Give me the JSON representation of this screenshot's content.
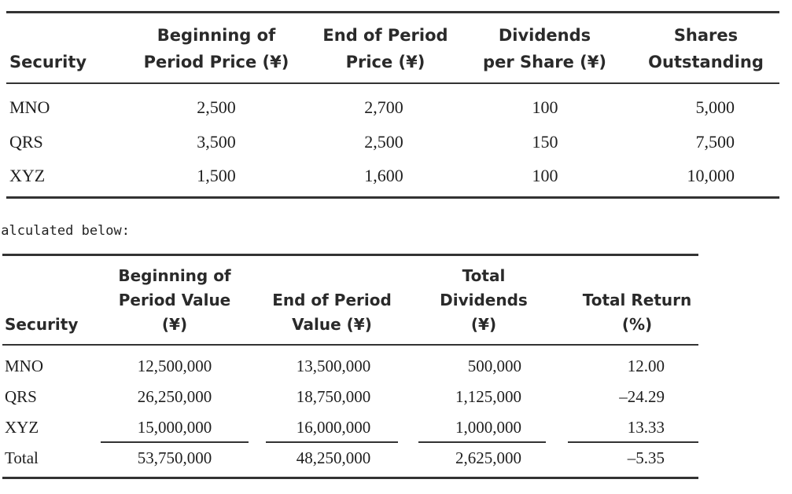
{
  "table1": {
    "headers": {
      "security": "Security",
      "begin_price_l1": "Beginning of",
      "begin_price_l2": "Period Price (¥)",
      "end_price_l1": "End of Period",
      "end_price_l2": "Price (¥)",
      "dividends_l1": "Dividends",
      "dividends_l2": "per Share (¥)",
      "shares_l1": "Shares",
      "shares_l2": "Outstanding"
    },
    "rows": [
      {
        "security": "MNO",
        "begin": "2,500",
        "end": "2,700",
        "div": "100",
        "shares": "5,000"
      },
      {
        "security": "QRS",
        "begin": "3,500",
        "end": "2,500",
        "div": "150",
        "shares": "7,500"
      },
      {
        "security": "XYZ",
        "begin": "1,500",
        "end": "1,600",
        "div": "100",
        "shares": "10,000"
      }
    ]
  },
  "note": "calculated below:",
  "table2": {
    "headers": {
      "security": "Security",
      "begin_l1": "Beginning of",
      "begin_l2": "Period Value",
      "begin_l3": "(¥)",
      "end_l1": "End of Period",
      "end_l2": "Value (¥)",
      "div_l1": "Total",
      "div_l2": "Dividends",
      "div_l3": "(¥)",
      "ret_l1": "Total Return",
      "ret_l2": "(%)"
    },
    "rows": [
      {
        "security": "MNO",
        "begin": "12,500,000",
        "end": "13,500,000",
        "div": "500,000",
        "ret": "12.00"
      },
      {
        "security": "QRS",
        "begin": "26,250,000",
        "end": "18,750,000",
        "div": "1,125,000",
        "ret": "–24.29"
      },
      {
        "security": "XYZ",
        "begin": "15,000,000",
        "end": "16,000,000",
        "div": "1,000,000",
        "ret": "13.33"
      },
      {
        "security": "Total",
        "begin": "53,750,000",
        "end": "48,250,000",
        "div": "2,625,000",
        "ret": "–5.35"
      }
    ]
  }
}
